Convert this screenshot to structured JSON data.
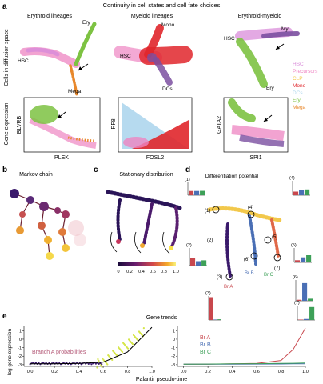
{
  "figure": {
    "panel_a": {
      "letter": "a",
      "title": "Continuity in cell states and cell fate choices",
      "col_titles": [
        "Erythroid lineages",
        "Myeloid lineages",
        "Erythroid-myeloid"
      ],
      "row_labels": [
        "Cells in diffusion space",
        "Gene expression"
      ],
      "ery_labels": {
        "ery": "Ery",
        "hsc": "HSC",
        "mega": "Mega"
      },
      "mye_labels": {
        "mono": "Mono",
        "hsc": "HSC",
        "dcs": "DCs"
      },
      "em_labels": {
        "myl": "Myl",
        "hsc": "HSC",
        "ery": "Ery"
      },
      "gene_axes": [
        {
          "x": "PLEK",
          "y": "BLVRB"
        },
        {
          "x": "FOSL2",
          "y": "IRF8"
        },
        {
          "x": "SPI1",
          "y": "GATA2"
        }
      ],
      "legend": [
        {
          "label": "HSC",
          "color": "#d98cd9"
        },
        {
          "label": "Precursors",
          "color": "#ee84c2"
        },
        {
          "label": "CLP",
          "color": "#f2c84b"
        },
        {
          "label": "Mono",
          "color": "#e0262b"
        },
        {
          "label": "DCs",
          "color": "#a9d4ec"
        },
        {
          "label": "Ery",
          "color": "#7dc242"
        },
        {
          "label": "Mega",
          "color": "#e8882c"
        }
      ]
    },
    "panel_b": {
      "letter": "b",
      "title": "Markov chain"
    },
    "panel_c": {
      "letter": "c",
      "title": "Stationary distribution",
      "colorbar_ticks": [
        "0",
        "0.2",
        "0.4",
        "0.6",
        "0.8",
        "1.0"
      ]
    },
    "panel_d": {
      "letter": "d",
      "title": "Differentiation potential",
      "point_labels": [
        "(1)",
        "(2)",
        "(3)",
        "(4)",
        "(5)",
        "(6)",
        "(7)"
      ],
      "branch_labels": [
        "Br A",
        "Br B",
        "Br C"
      ],
      "bar_colors": {
        "a": "#c8474d",
        "b": "#4a6fb5",
        "c": "#3da058"
      },
      "insets": [
        {
          "label": "(1)",
          "values": [
            0.33,
            0.33,
            0.34
          ]
        },
        {
          "label": "(2)",
          "values": [
            0.45,
            0.25,
            0.3
          ]
        },
        {
          "label": "(3)",
          "values": [
            0.95,
            0.02,
            0.03
          ]
        },
        {
          "label": "(4)",
          "values": [
            0.25,
            0.35,
            0.4
          ]
        },
        {
          "label": "(5)",
          "values": [
            0.15,
            0.35,
            0.5
          ]
        },
        {
          "label": "(6)",
          "values": [
            0.05,
            0.85,
            0.1
          ]
        },
        {
          "label": "(7)",
          "values": [
            0.03,
            0.07,
            0.9
          ]
        }
      ]
    },
    "panel_e": {
      "letter": "e",
      "title": "Gene trends",
      "ylabel": "log gene expression",
      "xlabel": "Palantir pseudo-time",
      "left_annotation": "Branch A probabilities",
      "legend": [
        "Br A",
        "Br B",
        "Br C"
      ]
    }
  },
  "chart_data": [
    {
      "type": "line",
      "title": "",
      "xlabel": "Palantir pseudo-time",
      "ylabel": "log gene expression",
      "x": [
        0.0,
        0.2,
        0.4,
        0.6,
        0.8,
        1.0
      ],
      "series": [
        {
          "name": "",
          "values": [
            -2.9,
            -2.9,
            -2.85,
            -2.7,
            -1.5,
            1.4
          ]
        }
      ],
      "xlim": [
        -0.05,
        1.0
      ],
      "ylim": [
        -3.2,
        1.5
      ],
      "xticks": [
        "0.0",
        "0.2",
        "0.4",
        "0.6",
        "0.8",
        "1.0"
      ],
      "yticks": [
        "1",
        "0",
        "-1",
        "-2",
        "-3"
      ]
    },
    {
      "type": "line",
      "title": "",
      "xlabel": "",
      "ylabel": "",
      "x": [
        0.0,
        0.2,
        0.4,
        0.6,
        0.8,
        0.9,
        1.0
      ],
      "series": [
        {
          "name": "Br A",
          "values": [
            -2.95,
            -2.95,
            -2.9,
            -2.85,
            -2.5,
            -1.2,
            1.3
          ]
        },
        {
          "name": "Br B",
          "values": [
            -2.95,
            -2.95,
            -2.95,
            -2.93,
            -2.92,
            -2.9,
            -2.9
          ]
        },
        {
          "name": "Br C",
          "values": [
            -2.95,
            -2.93,
            -2.9,
            -2.88,
            -2.85,
            -2.83,
            -2.8
          ]
        }
      ],
      "xlim": [
        -0.05,
        1.0
      ],
      "ylim": [
        -3.2,
        1.5
      ],
      "xticks": [
        "0.0",
        "0.2",
        "0.4",
        "0.6",
        "0.8",
        "1.0"
      ],
      "yticks": [
        "1",
        "0",
        "-1",
        "-2",
        "-3"
      ]
    }
  ]
}
